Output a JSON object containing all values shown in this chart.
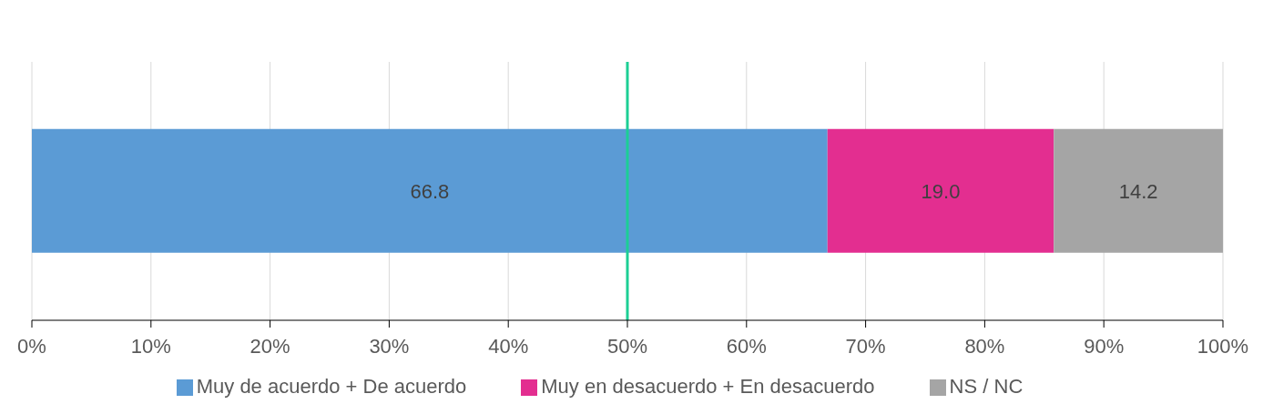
{
  "chart_data": {
    "type": "bar",
    "orientation": "horizontal",
    "stacked": true,
    "categories": [
      null
    ],
    "series": [
      {
        "name": "Muy de acuerdo + De acuerdo",
        "color": "#5b9bd5",
        "values": [
          66.8
        ],
        "value_labels": [
          "66.8"
        ]
      },
      {
        "name": "Muy en desacuerdo + En desacuerdo",
        "color": "#e32e90",
        "values": [
          19.0
        ],
        "value_labels": [
          "19.0"
        ]
      },
      {
        "name": "NS / NC",
        "color": "#a5a5a5",
        "values": [
          14.2
        ],
        "value_labels": [
          "14.2"
        ]
      }
    ],
    "xlim": [
      0,
      100
    ],
    "xticks": [
      {
        "value": 0,
        "label": "0%"
      },
      {
        "value": 10,
        "label": "10%"
      },
      {
        "value": 20,
        "label": "20%"
      },
      {
        "value": 30,
        "label": "30%"
      },
      {
        "value": 40,
        "label": "40%"
      },
      {
        "value": 50,
        "label": "50%"
      },
      {
        "value": 60,
        "label": "60%"
      },
      {
        "value": 70,
        "label": "70%"
      },
      {
        "value": 80,
        "label": "80%"
      },
      {
        "value": 90,
        "label": "90%"
      },
      {
        "value": 100,
        "label": "100%"
      }
    ],
    "grid": "x",
    "legend": "bottom",
    "ref_lines": [
      {
        "axis": "x",
        "value": 50,
        "color": "#1ccf95"
      }
    ]
  }
}
